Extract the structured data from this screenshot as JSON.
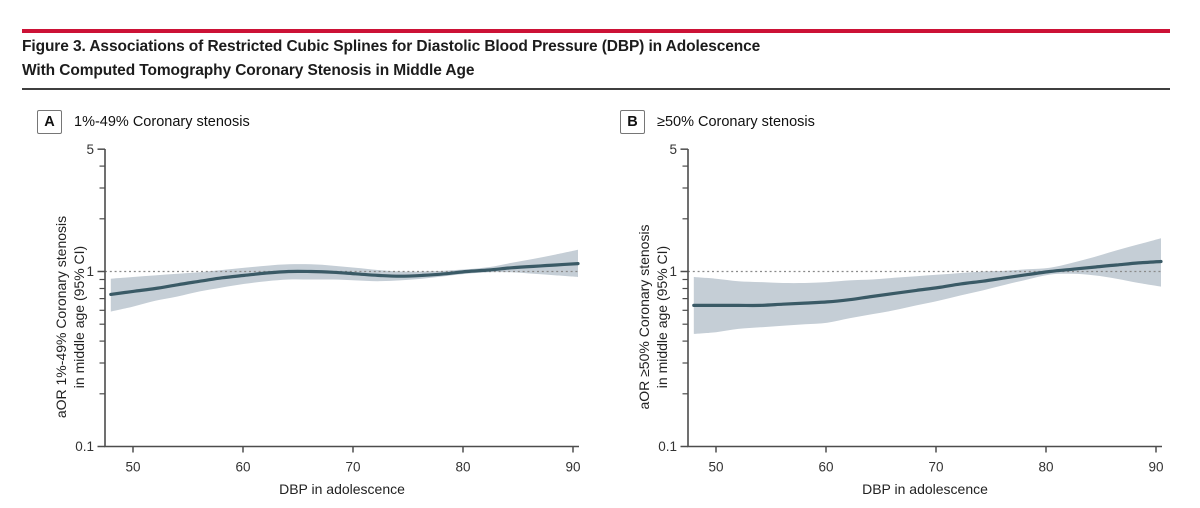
{
  "figure": {
    "title_line1": "Figure 3. Associations of Restricted Cubic Splines for Diastolic Blood Pressure (DBP) in Adolescence",
    "title_line2": "With Computed Tomography Coronary Stenosis in Middle Age"
  },
  "colors": {
    "accent_red": "#cc1236",
    "rule_dark": "#3f3f3f",
    "curve": "#3a5a66",
    "band": "#c5ced6",
    "axis": "#4d4d4d",
    "dotted": "#8a8a8a",
    "tick_text": "#333333"
  },
  "chart_data": [
    {
      "type": "line",
      "panel_label": "A",
      "title": "1%-49% Coronary stenosis",
      "xlabel": "DBP in adolescence",
      "ylabel_line1": "aOR 1%-49% Coronary stenosis",
      "ylabel_line2": "in middle age (95% CI)",
      "y_scale": "log",
      "ylim": [
        0.1,
        5
      ],
      "xlim": [
        47.5,
        90.5
      ],
      "x_ticks": [
        50,
        60,
        70,
        80,
        90
      ],
      "y_ticks_major": [
        5,
        1,
        0.1
      ],
      "y_ticks_minor": [
        4,
        3,
        2,
        0.9,
        0.8,
        0.7,
        0.6,
        0.5,
        0.4,
        0.3,
        0.2
      ],
      "reference_line": 1,
      "x": [
        48,
        50,
        52,
        54,
        56,
        58,
        60,
        62,
        64,
        66,
        68,
        70,
        72,
        74,
        76,
        78,
        80,
        82,
        84,
        86,
        88,
        90
      ],
      "or": [
        0.74,
        0.77,
        0.8,
        0.84,
        0.88,
        0.92,
        0.95,
        0.98,
        1.0,
        1.0,
        0.99,
        0.97,
        0.95,
        0.94,
        0.95,
        0.97,
        1.0,
        1.02,
        1.05,
        1.07,
        1.09,
        1.11
      ],
      "ci_low": [
        0.59,
        0.63,
        0.68,
        0.72,
        0.77,
        0.81,
        0.85,
        0.88,
        0.9,
        0.9,
        0.9,
        0.89,
        0.88,
        0.89,
        0.91,
        0.94,
        0.97,
        0.99,
        0.99,
        0.97,
        0.95,
        0.93
      ],
      "ci_high": [
        0.91,
        0.93,
        0.95,
        0.97,
        0.99,
        1.02,
        1.05,
        1.08,
        1.1,
        1.1,
        1.08,
        1.05,
        1.02,
        1.0,
        1.0,
        1.01,
        1.03,
        1.06,
        1.12,
        1.18,
        1.25,
        1.33
      ]
    },
    {
      "type": "line",
      "panel_label": "B",
      "title": "≥50% Coronary stenosis",
      "xlabel": "DBP in adolescence",
      "ylabel_line1": "aOR ≥50% Coronary stenosis",
      "ylabel_line2": "in middle age (95% CI)",
      "y_scale": "log",
      "ylim": [
        0.1,
        5
      ],
      "xlim": [
        47.5,
        90.5
      ],
      "x_ticks": [
        50,
        60,
        70,
        80,
        90
      ],
      "y_ticks_major": [
        5,
        1,
        0.1
      ],
      "y_ticks_minor": [
        4,
        3,
        2,
        0.9,
        0.8,
        0.7,
        0.6,
        0.5,
        0.4,
        0.3,
        0.2
      ],
      "reference_line": 1,
      "x": [
        48,
        50,
        52,
        54,
        56,
        58,
        60,
        62,
        64,
        66,
        68,
        70,
        72,
        74,
        76,
        78,
        80,
        82,
        84,
        86,
        88,
        90
      ],
      "or": [
        0.64,
        0.64,
        0.64,
        0.64,
        0.65,
        0.66,
        0.67,
        0.69,
        0.72,
        0.75,
        0.78,
        0.81,
        0.85,
        0.88,
        0.92,
        0.96,
        1.0,
        1.03,
        1.06,
        1.09,
        1.12,
        1.14
      ],
      "ci_low": [
        0.44,
        0.45,
        0.47,
        0.48,
        0.49,
        0.5,
        0.51,
        0.54,
        0.57,
        0.6,
        0.64,
        0.68,
        0.73,
        0.78,
        0.84,
        0.9,
        0.96,
        0.97,
        0.95,
        0.91,
        0.86,
        0.82
      ],
      "ci_high": [
        0.93,
        0.91,
        0.88,
        0.87,
        0.86,
        0.86,
        0.87,
        0.89,
        0.9,
        0.92,
        0.94,
        0.96,
        0.98,
        1.0,
        1.01,
        1.03,
        1.05,
        1.12,
        1.21,
        1.32,
        1.43,
        1.55
      ]
    }
  ]
}
